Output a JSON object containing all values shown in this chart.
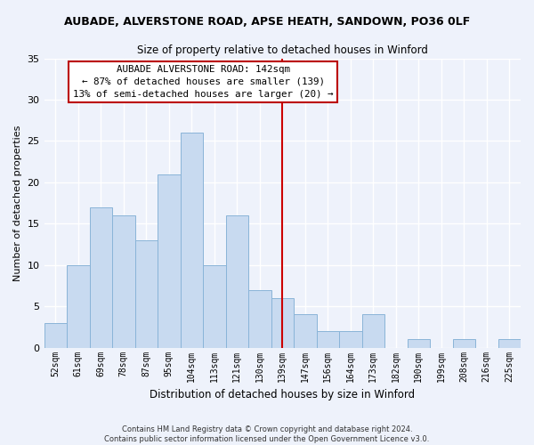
{
  "title1": "AUBADE, ALVERSTONE ROAD, APSE HEATH, SANDOWN, PO36 0LF",
  "title2": "Size of property relative to detached houses in Winford",
  "xlabel": "Distribution of detached houses by size in Winford",
  "ylabel": "Number of detached properties",
  "bin_labels": [
    "52sqm",
    "61sqm",
    "69sqm",
    "78sqm",
    "87sqm",
    "95sqm",
    "104sqm",
    "113sqm",
    "121sqm",
    "130sqm",
    "139sqm",
    "147sqm",
    "156sqm",
    "164sqm",
    "173sqm",
    "182sqm",
    "190sqm",
    "199sqm",
    "208sqm",
    "216sqm",
    "225sqm"
  ],
  "bar_values": [
    3,
    10,
    17,
    16,
    13,
    21,
    26,
    10,
    16,
    7,
    6,
    4,
    2,
    2,
    4,
    0,
    1,
    0,
    1,
    0,
    1
  ],
  "bar_color": "#c8daf0",
  "bar_edge_color": "#8ab4d8",
  "ylim": [
    0,
    35
  ],
  "yticks": [
    0,
    5,
    10,
    15,
    20,
    25,
    30,
    35
  ],
  "vline_x_idx": 10.5,
  "vline_color": "#cc0000",
  "annotation_title": "AUBADE ALVERSTONE ROAD: 142sqm",
  "annotation_line1": "← 87% of detached houses are smaller (139)",
  "annotation_line2": "13% of semi-detached houses are larger (20) →",
  "footer1": "Contains HM Land Registry data © Crown copyright and database right 2024.",
  "footer2": "Contains public sector information licensed under the Open Government Licence v3.0.",
  "bg_color": "#eef2fb",
  "grid_color": "#ffffff"
}
